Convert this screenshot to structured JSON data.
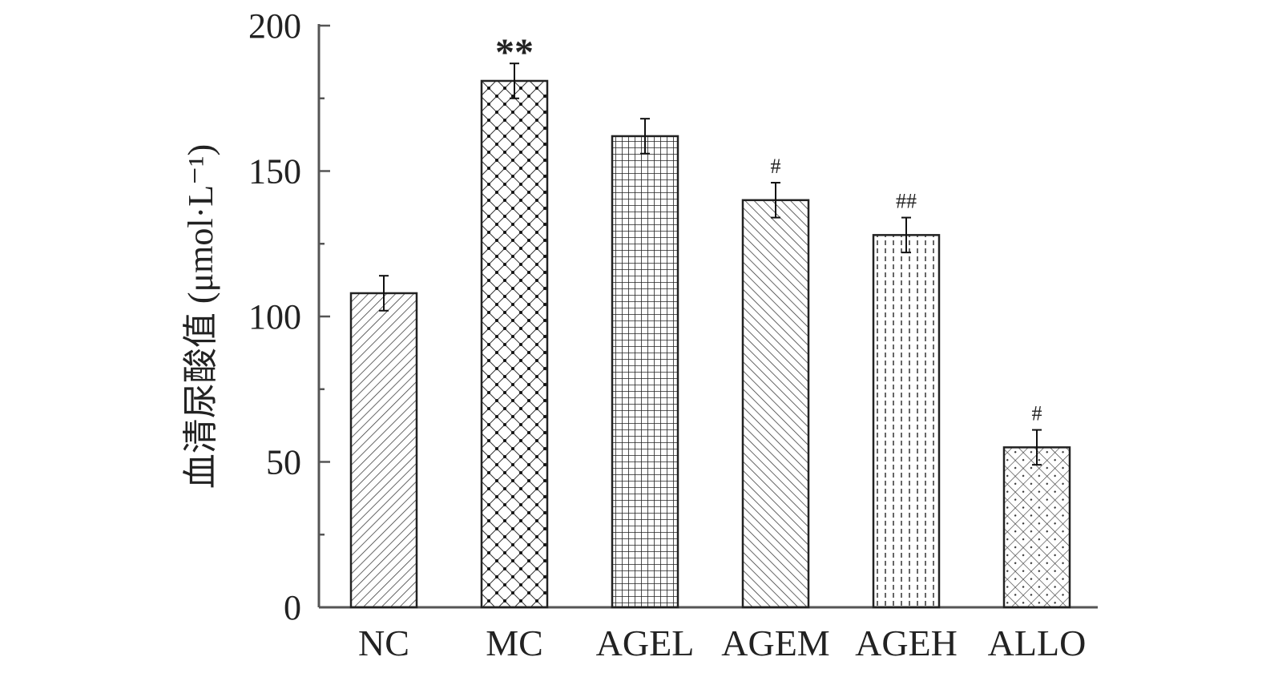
{
  "chart_data": {
    "type": "bar",
    "title": "",
    "xlabel": "",
    "ylabel": "血清尿酸值 (μmol·L⁻¹)",
    "categories": [
      "NC",
      "MC",
      "AGEL",
      "AGEM",
      "AGEH",
      "ALLO"
    ],
    "values": [
      108,
      181,
      162,
      140,
      128,
      55
    ],
    "errors": [
      6,
      6,
      6,
      6,
      6,
      6
    ],
    "annotations": [
      "",
      "**",
      "",
      "#",
      "##",
      "#"
    ],
    "ylim": [
      0,
      200
    ],
    "yticks": [
      0,
      50,
      100,
      150,
      200
    ],
    "yticks_minor": [
      25,
      75,
      125,
      175
    ],
    "grid": false,
    "colors": {
      "bar_edge": "#222222",
      "pattern": "#333333",
      "axis": "#555555"
    }
  }
}
